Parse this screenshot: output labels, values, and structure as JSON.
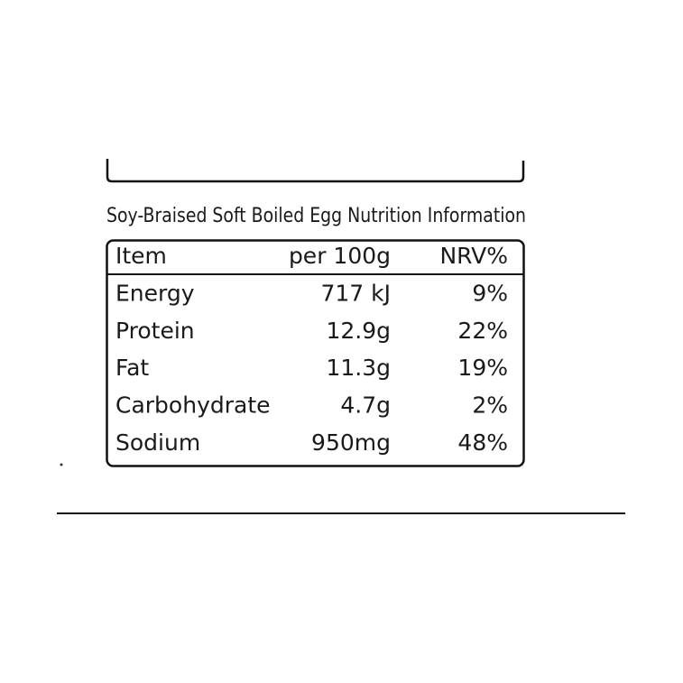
{
  "title": "Soy-Braised Soft Boiled Egg Nutrition Information",
  "table": {
    "header": [
      "Item",
      "per 100g",
      "NRV%"
    ],
    "rows": [
      [
        "Energy",
        "717 kJ",
        "9%"
      ],
      [
        "Protein",
        "12.9g",
        "22%"
      ],
      [
        "Fat",
        "11.3g",
        "19%"
      ],
      [
        "Carbohydrate",
        "4.7g",
        "2%"
      ],
      [
        "Sodium",
        "950mg",
        "48%"
      ]
    ]
  }
}
